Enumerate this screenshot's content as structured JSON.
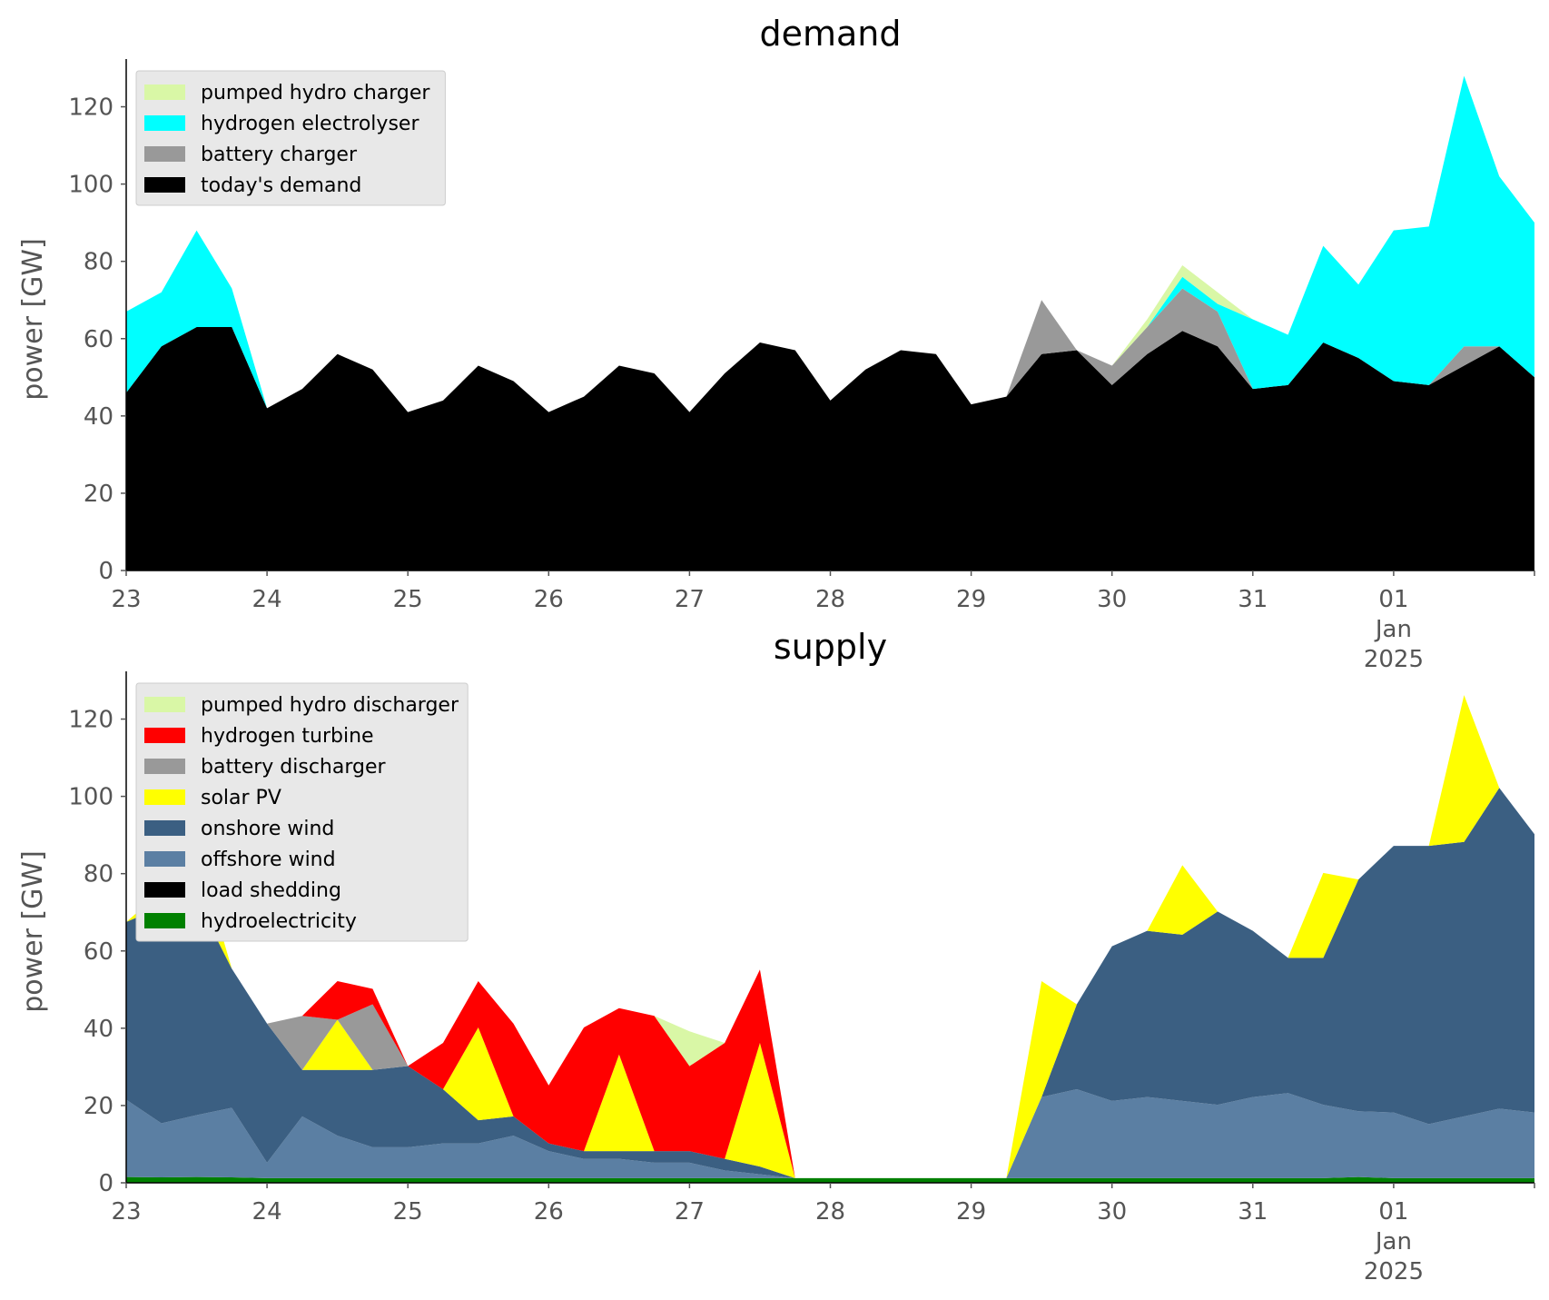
{
  "chart_data": [
    {
      "type": "area",
      "stacked": true,
      "title": "demand",
      "xlabel": "",
      "ylabel": "power [GW]",
      "ylim": [
        0,
        130
      ],
      "yticks": [
        0,
        20,
        40,
        60,
        80,
        100,
        120
      ],
      "x_days": [
        0,
        0.25,
        0.5,
        0.75,
        1,
        1.25,
        1.5,
        1.75,
        2,
        2.25,
        2.5,
        2.75,
        3,
        3.25,
        3.5,
        3.75,
        4,
        4.25,
        4.5,
        4.75,
        5,
        5.25,
        5.5,
        5.75,
        6,
        6.25,
        6.5,
        6.75,
        7,
        7.25,
        7.5,
        7.75,
        8,
        8.25,
        8.5,
        8.75,
        9,
        9.25,
        9.5,
        9.75,
        10
      ],
      "xticks": [
        {
          "day": 0,
          "label": [
            "23"
          ]
        },
        {
          "day": 1,
          "label": [
            "24"
          ]
        },
        {
          "day": 2,
          "label": [
            "25"
          ]
        },
        {
          "day": 3,
          "label": [
            "26"
          ]
        },
        {
          "day": 4,
          "label": [
            "27"
          ]
        },
        {
          "day": 5,
          "label": [
            "28"
          ]
        },
        {
          "day": 6,
          "label": [
            "29"
          ]
        },
        {
          "day": 7,
          "label": [
            "30"
          ]
        },
        {
          "day": 8,
          "label": [
            "31"
          ]
        },
        {
          "day": 9,
          "label": [
            "01",
            "Jan",
            "2025"
          ]
        }
      ],
      "legend_position": "upper-left",
      "series": [
        {
          "name": "today's demand",
          "color": "#000000",
          "values": [
            46,
            58,
            63,
            63,
            42,
            47,
            56,
            52,
            41,
            44,
            53,
            49,
            41,
            45,
            53,
            51,
            41,
            51,
            59,
            57,
            44,
            52,
            57,
            56,
            43,
            45,
            56,
            57,
            48,
            56,
            62,
            58,
            47,
            48,
            59,
            55,
            49,
            48,
            53,
            58,
            50
          ]
        },
        {
          "name": "battery charger",
          "color": "#999999",
          "values": [
            0,
            0,
            0,
            0,
            0,
            0,
            0,
            0,
            0,
            0,
            0,
            0,
            0,
            0,
            0,
            0,
            0,
            0,
            0,
            0,
            0,
            0,
            0,
            0,
            0,
            0,
            14,
            0,
            5,
            7,
            11,
            9,
            0,
            0,
            0,
            0,
            0,
            0,
            5,
            0,
            0
          ]
        },
        {
          "name": "hydrogen electrolyser",
          "color": "#00ffff",
          "values": [
            21,
            14,
            25,
            10,
            0,
            0,
            0,
            0,
            0,
            0,
            0,
            0,
            0,
            0,
            0,
            0,
            0,
            0,
            0,
            0,
            0,
            0,
            0,
            0,
            0,
            0,
            0,
            0,
            0,
            0,
            3,
            2,
            18,
            13,
            25,
            19,
            39,
            41,
            70,
            44,
            40
          ]
        },
        {
          "name": "pumped hydro charger",
          "color": "#d9f7a6",
          "values": [
            0,
            0,
            0,
            0,
            0,
            0,
            0,
            0,
            0,
            0,
            0,
            0,
            0,
            0,
            0,
            0,
            0,
            0,
            0,
            0,
            0,
            0,
            0,
            0,
            0,
            0,
            0,
            0,
            0,
            2,
            3,
            3,
            0,
            0,
            0,
            0,
            0,
            0,
            0,
            0,
            0
          ]
        }
      ],
      "legend_order": [
        "pumped hydro charger",
        "hydrogen electrolyser",
        "battery charger",
        "today's demand"
      ]
    },
    {
      "type": "area",
      "stacked": true,
      "title": "supply",
      "xlabel": "",
      "ylabel": "power [GW]",
      "ylim": [
        0,
        130
      ],
      "yticks": [
        0,
        20,
        40,
        60,
        80,
        100,
        120
      ],
      "x_days": [
        0,
        0.25,
        0.5,
        0.75,
        1,
        1.25,
        1.5,
        1.75,
        2,
        2.25,
        2.5,
        2.75,
        3,
        3.25,
        3.5,
        3.75,
        4,
        4.25,
        4.5,
        4.75,
        5,
        5.25,
        5.5,
        5.75,
        6,
        6.25,
        6.5,
        6.75,
        7,
        7.25,
        7.5,
        7.75,
        8,
        8.25,
        8.5,
        8.75,
        9,
        9.25,
        9.5,
        9.75,
        10
      ],
      "xticks": [
        {
          "day": 0,
          "label": [
            "23"
          ]
        },
        {
          "day": 1,
          "label": [
            "24"
          ]
        },
        {
          "day": 2,
          "label": [
            "25"
          ]
        },
        {
          "day": 3,
          "label": [
            "26"
          ]
        },
        {
          "day": 4,
          "label": [
            "27"
          ]
        },
        {
          "day": 5,
          "label": [
            "28"
          ]
        },
        {
          "day": 6,
          "label": [
            "29"
          ]
        },
        {
          "day": 7,
          "label": [
            "30"
          ]
        },
        {
          "day": 8,
          "label": [
            "31"
          ]
        },
        {
          "day": 9,
          "label": [
            "01",
            "Jan",
            "2025"
          ]
        }
      ],
      "legend_position": "upper-left",
      "series": [
        {
          "name": "hydroelectricity",
          "color": "#008000",
          "values": [
            1.5,
            1.4,
            1.5,
            1.4,
            1.2,
            1.2,
            1.2,
            1.2,
            1.2,
            1.2,
            1.2,
            1.2,
            1.2,
            1.2,
            1.2,
            1.2,
            1.2,
            1.2,
            1.2,
            1.2,
            1.2,
            1.2,
            1.2,
            1.2,
            1.2,
            1.2,
            1.2,
            1.2,
            1.2,
            1.2,
            1.2,
            1.2,
            1.2,
            1.2,
            1.2,
            1.5,
            1.2,
            1.2,
            1.2,
            1.2,
            1.2
          ]
        },
        {
          "name": "load shedding",
          "color": "#000000",
          "values": [
            0,
            0,
            0,
            0,
            0,
            0,
            0,
            0,
            0,
            0,
            0,
            0,
            0,
            0,
            0,
            0,
            0,
            0,
            0,
            0,
            0,
            0,
            0,
            0,
            0,
            0,
            0,
            0,
            0,
            0,
            0,
            0,
            0,
            0,
            0,
            0,
            0,
            0,
            0,
            0,
            0
          ]
        },
        {
          "name": "offshore wind",
          "color": "#5b7fa3",
          "values": [
            20,
            14,
            16,
            18,
            4,
            16,
            11,
            8,
            8,
            9,
            9,
            11,
            7,
            5,
            5,
            4,
            4,
            2,
            1,
            0,
            0,
            0,
            0,
            0,
            0,
            0,
            21,
            23,
            20,
            21,
            20,
            19,
            21,
            22,
            19,
            17,
            17,
            14,
            16,
            18,
            17
          ]
        },
        {
          "name": "onshore wind",
          "color": "#3b5f82",
          "values": [
            46,
            56,
            56,
            36,
            36,
            12,
            17,
            20,
            21,
            14,
            6,
            5,
            2,
            2,
            2,
            3,
            3,
            3,
            2,
            0,
            0,
            0,
            0,
            0,
            0,
            0,
            0,
            22,
            40,
            43,
            43,
            50,
            43,
            35,
            38,
            60,
            69,
            72,
            71,
            83,
            72
          ]
        },
        {
          "name": "solar PV",
          "color": "#ffff00",
          "values": [
            0,
            4,
            13,
            0,
            0,
            0,
            13,
            0,
            0,
            0,
            24,
            0,
            0,
            0,
            25,
            0,
            0,
            0,
            32,
            0,
            0,
            0,
            0,
            0,
            0,
            0,
            30,
            0,
            0,
            0,
            18,
            0,
            0,
            0,
            22,
            0,
            0,
            0,
            38,
            0,
            0
          ]
        },
        {
          "name": "battery discharger",
          "color": "#999999",
          "values": [
            0,
            0,
            0,
            0,
            0,
            14,
            0,
            17,
            0,
            0,
            0,
            0,
            0,
            0,
            0,
            0,
            0,
            0,
            0,
            0,
            0,
            0,
            0,
            0,
            0,
            0,
            0,
            0,
            0,
            0,
            0,
            0,
            0,
            0,
            0,
            0,
            0,
            0,
            0,
            0,
            0
          ]
        },
        {
          "name": "hydrogen turbine",
          "color": "#ff0000",
          "values": [
            0,
            0,
            0,
            0,
            0,
            0,
            10,
            4,
            0,
            12,
            12,
            24,
            15,
            32,
            12,
            35,
            22,
            30,
            19,
            0,
            0,
            0,
            0,
            0,
            0,
            0,
            0,
            0,
            0,
            0,
            0,
            0,
            0,
            0,
            0,
            0,
            0,
            0,
            0,
            0,
            0
          ]
        },
        {
          "name": "pumped hydro discharger",
          "color": "#d9f7a6",
          "values": [
            0,
            0,
            0,
            0,
            0,
            0,
            0,
            0,
            0,
            0,
            0,
            0,
            0,
            0,
            0,
            0,
            9,
            0,
            0,
            0,
            0,
            0,
            0,
            0,
            0,
            0,
            0,
            0,
            0,
            0,
            0,
            0,
            0,
            0,
            0,
            0,
            0,
            0,
            0,
            0,
            0
          ]
        }
      ],
      "load_shedding_values": [
        0,
        0,
        0,
        0,
        0,
        0,
        0,
        0,
        0,
        0,
        0,
        0,
        0,
        0,
        0,
        0,
        0,
        0,
        0,
        0,
        0,
        0,
        0,
        0,
        0,
        0,
        0,
        0,
        0,
        0,
        0,
        0,
        0,
        0,
        0,
        0,
        0,
        0,
        0,
        0,
        0
      ],
      "legend_order": [
        "pumped hydro discharger",
        "hydrogen turbine",
        "battery discharger",
        "solar PV",
        "onshore wind",
        "offshore wind",
        "load shedding",
        "hydroelectricity"
      ]
    }
  ]
}
